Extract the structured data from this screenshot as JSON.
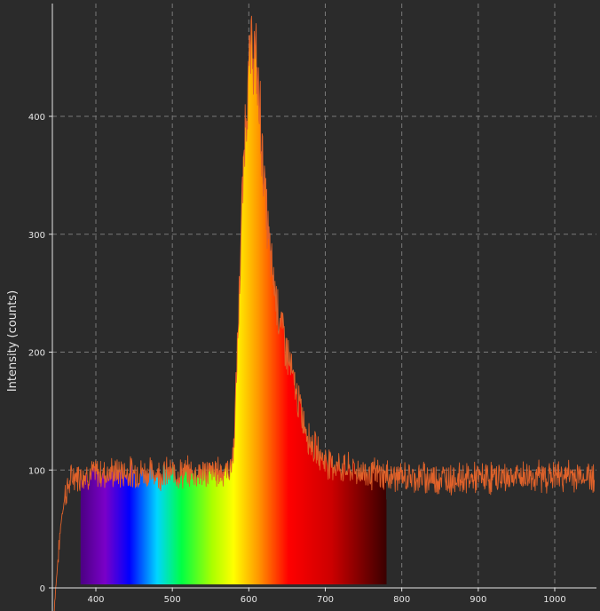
{
  "chart_data": {
    "type": "area",
    "title": "",
    "xlabel": "",
    "ylabel": "Intensity (counts)",
    "xlim": [
      340,
      1055
    ],
    "ylim": [
      0,
      470
    ],
    "x_ticks": [
      400,
      500,
      600,
      700,
      800,
      900,
      1000
    ],
    "y_ticks": [
      0,
      100,
      200,
      300,
      400
    ],
    "grid": true,
    "legend": "none",
    "colors": {
      "background": "#2b2b2b",
      "grid": "#7a7a7a",
      "axis": "#e6e6e6",
      "spectrum_line": "#e0622a",
      "visible_band_start": "#6a00a8",
      "visible_band_end": "#3a0000"
    },
    "visible_band_nm": [
      380,
      780
    ],
    "series": [
      {
        "x": [
          345,
          350,
          355,
          360,
          370,
          380,
          400,
          450,
          500,
          550,
          575,
          580,
          585,
          590,
          595,
          600,
          605,
          610,
          615,
          620,
          625,
          630,
          640,
          650,
          660,
          670,
          680,
          690,
          700,
          720,
          740,
          760,
          780,
          800,
          850,
          900,
          950,
          1000,
          1050
        ],
        "values": [
          -20,
          20,
          60,
          80,
          95,
          96,
          97,
          98,
          97,
          98,
          100,
          115,
          200,
          300,
          390,
          440,
          460,
          440,
          400,
          345,
          300,
          270,
          230,
          200,
          170,
          145,
          125,
          115,
          108,
          102,
          99,
          97,
          95,
          94,
          93,
          93,
          94,
          95,
          95
        ]
      }
    ]
  }
}
